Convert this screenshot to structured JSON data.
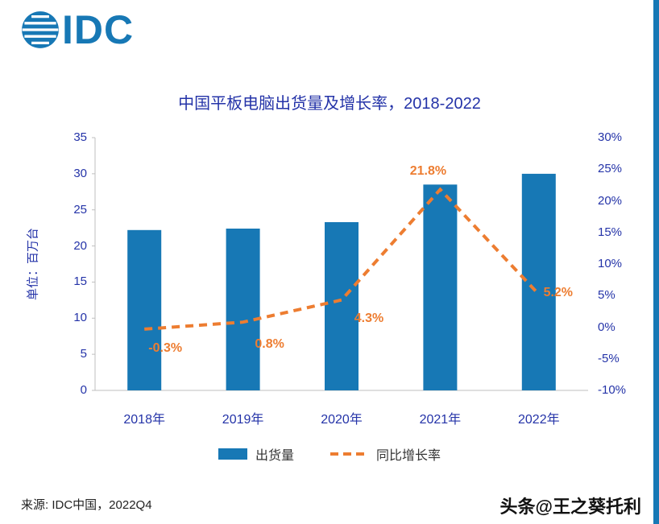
{
  "logo": {
    "text": "IDC"
  },
  "chart_data": {
    "type": "combo",
    "title": "中国平板电脑出货量及增长率，2018-2022",
    "ylabel": "单位：百万台",
    "categories": [
      "2018年",
      "2019年",
      "2020年",
      "2021年",
      "2022年"
    ],
    "series": [
      {
        "name": "出货量",
        "type": "bar",
        "axis": "left",
        "values": [
          22.2,
          22.4,
          23.3,
          28.5,
          30
        ]
      },
      {
        "name": "同比增长率",
        "type": "line",
        "axis": "right",
        "values": [
          -0.3,
          0.8,
          4.3,
          21.8,
          5.2
        ],
        "labels": [
          "-0.3%",
          "0.8%",
          "4.3%",
          "21.8%",
          "5.2%"
        ]
      }
    ],
    "left_axis": {
      "min": 0,
      "max": 35,
      "step": 5,
      "ticks": [
        "35",
        "30",
        "25",
        "20",
        "15",
        "10",
        "5",
        "0"
      ]
    },
    "right_axis": {
      "min": -10,
      "max": 30,
      "step": 5,
      "ticks": [
        "30%",
        "25%",
        "20%",
        "15%",
        "10%",
        "5%",
        "0%",
        "-5%",
        "-10%"
      ]
    },
    "legend": [
      {
        "label": "出货量"
      },
      {
        "label": "同比增长率"
      }
    ],
    "grid": "off",
    "colors": {
      "bar": "#1778B5",
      "line": "#ED7D31",
      "title": "#2433A8",
      "axis_text": "#2433A8"
    }
  },
  "footer": {
    "source": "来源: IDC中国，2022Q4",
    "watermark": "头条@王之葵托利"
  }
}
